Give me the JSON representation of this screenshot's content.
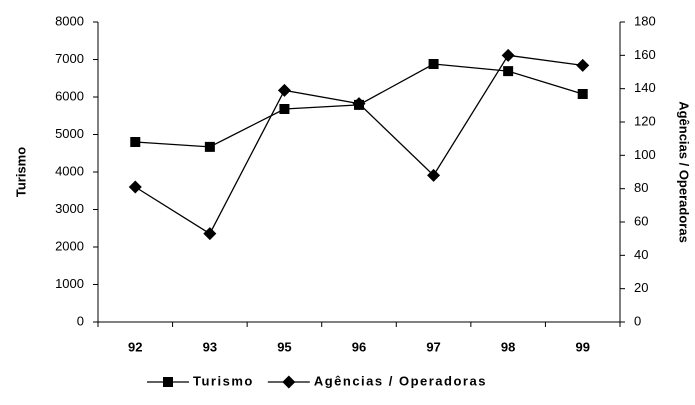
{
  "chart_data": {
    "type": "line",
    "categories": [
      "92",
      "93",
      "95",
      "96",
      "97",
      "98",
      "99"
    ],
    "series": [
      {
        "name": "Turismo",
        "color": "#000000",
        "marker": "square",
        "values": [
          4800,
          4670,
          5680,
          5790,
          6880,
          6690,
          6080
        ]
      },
      {
        "name": "Agências / Operadoras",
        "color": "#000000",
        "marker": "diamond",
        "axis": "y2",
        "values": [
          81,
          53,
          139,
          131,
          88,
          160,
          154
        ]
      }
    ],
    "ylabel": "Turismo",
    "y2label": "Agências / Operadoras",
    "ylim": [
      0,
      8000
    ],
    "yticks": [
      0,
      1000,
      2000,
      3000,
      4000,
      5000,
      6000,
      7000,
      8000
    ],
    "y2lim": [
      0,
      180
    ],
    "y2ticks": [
      0,
      20,
      40,
      60,
      80,
      100,
      120,
      140,
      160,
      180
    ],
    "legend": "bottom"
  }
}
